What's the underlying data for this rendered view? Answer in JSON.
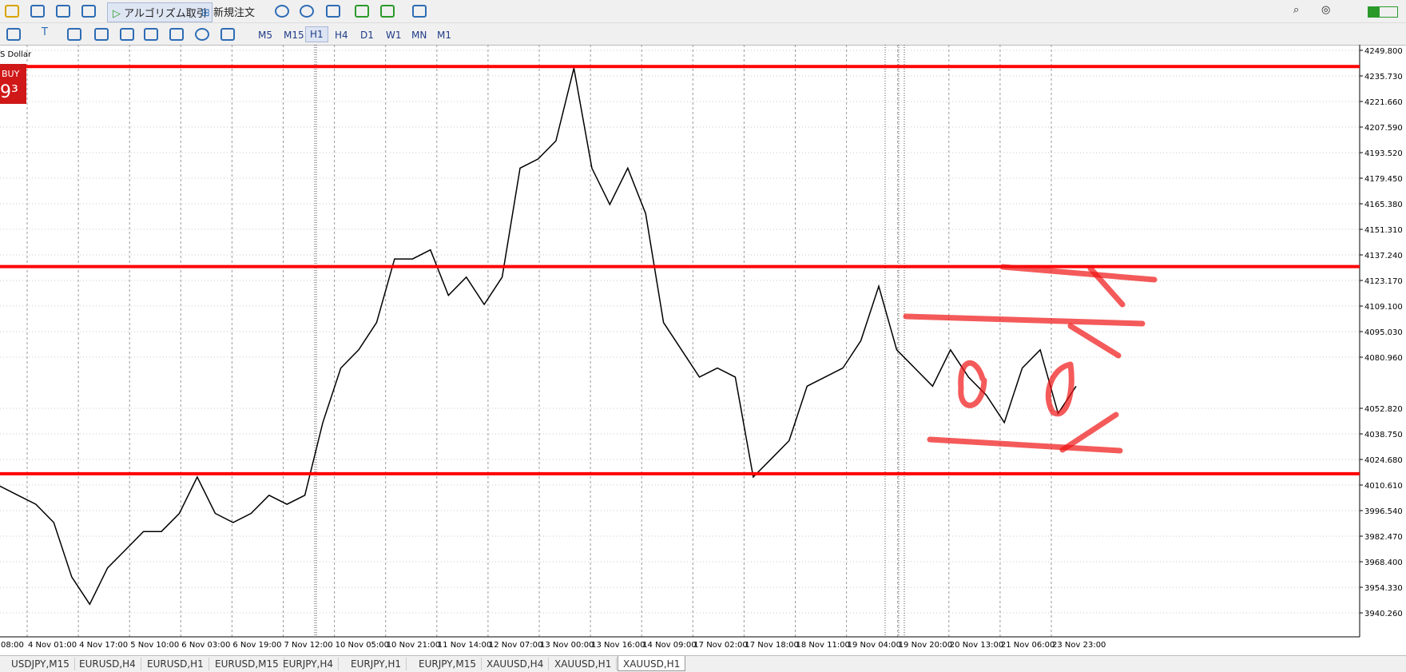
{
  "toolbar": {
    "algo_trading": "アルゴリズム取引",
    "new_order": "新規注文",
    "timeframes": [
      "M5",
      "M15",
      "H1",
      "H4",
      "D1",
      "W1",
      "MN",
      "M1"
    ],
    "active_timeframe": 2
  },
  "chart": {
    "symbol_label": "S Dollar",
    "buy_label": "BUY",
    "buy_price": "9³",
    "price_axis": {
      "ticks": [
        {
          "value": 4249.8,
          "label": "4249.800"
        },
        {
          "value": 4235.73,
          "label": "4235.730"
        },
        {
          "value": 4221.66,
          "label": "4221.660"
        },
        {
          "value": 4207.59,
          "label": "4207.590"
        },
        {
          "value": 4193.52,
          "label": "4193.520"
        },
        {
          "value": 4179.45,
          "label": "4179.450"
        },
        {
          "value": 4165.38,
          "label": "4165.380"
        },
        {
          "value": 4151.31,
          "label": "4151.310"
        },
        {
          "value": 4137.24,
          "label": "4137.240"
        },
        {
          "value": 4123.17,
          "label": "4123.170"
        },
        {
          "value": 4109.1,
          "label": "4109.100"
        },
        {
          "value": 4095.03,
          "label": "4095.030"
        },
        {
          "value": 4080.96,
          "label": "4080.960"
        },
        {
          "value": 4052.82,
          "label": "4052.820"
        },
        {
          "value": 4038.75,
          "label": "4038.750"
        },
        {
          "value": 4024.68,
          "label": "4024.680"
        },
        {
          "value": 4010.61,
          "label": "4010.610"
        },
        {
          "value": 3996.54,
          "label": "3996.540"
        },
        {
          "value": 3982.47,
          "label": "3982.470"
        },
        {
          "value": 3968.4,
          "label": "3968.400"
        },
        {
          "value": 3954.33,
          "label": "3954.330"
        },
        {
          "value": 3940.26,
          "label": "3940.260"
        }
      ]
    },
    "time_labels": [
      "08:00",
      "4 Nov 01:00",
      "4 Nov 17:00",
      "5 Nov 10:00",
      "6 Nov 03:00",
      "6 Nov 19:00",
      "7 Nov 12:00",
      "10 Nov 05:00",
      "10 Nov 21:00",
      "11 Nov 14:00",
      "12 Nov 07:00",
      "13 Nov 00:00",
      "13 Nov 16:00",
      "14 Nov 09:00",
      "17 Nov 02:00",
      "17 Nov 18:00",
      "18 Nov 11:00",
      "19 Nov 04:00",
      "19 Nov 20:00",
      "20 Nov 13:00",
      "21 Nov 06:00",
      "23 Nov 23:00"
    ],
    "horizontal_lines": [
      4240.9,
      4130.8,
      4016.8
    ],
    "prices": [
      4010,
      4005,
      4000,
      3990,
      3960,
      3945,
      3965,
      3975,
      3985,
      3985,
      3995,
      4015,
      3995,
      3990,
      3995,
      4005,
      4000,
      4005,
      4045,
      4075,
      4085,
      4100,
      4135,
      4135,
      4140,
      4115,
      4125,
      4110,
      4125,
      4185,
      4190,
      4200,
      4240,
      4185,
      4165,
      4185,
      4160,
      4100,
      4085,
      4070,
      4075,
      4070,
      4015,
      4025,
      4035,
      4065,
      4070,
      4075,
      4090,
      4120,
      4085,
      4075,
      4065,
      4085,
      4070,
      4060,
      4045,
      4075,
      4085,
      4050,
      4065
    ]
  },
  "tabs": [
    "USDJPY,M15",
    "EURUSD,H4",
    "EURUSD,H1",
    "EURUSD,M15",
    "EURJPY,H4",
    "EURJPY,H1",
    "EURJPY,M15",
    "XAUUSD,H4",
    "XAUUSD,H1",
    "XAUUSD,H1"
  ],
  "active_tab": 9
}
